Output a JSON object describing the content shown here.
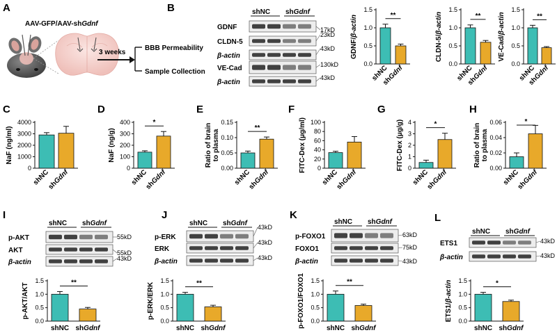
{
  "panel_a": {
    "letter": "A",
    "virus_label": "AAV-GFP/AAV-sh",
    "virus_gene": "Gdnf",
    "arrow_label": "3 weeks",
    "outcome_1": "BBB Permeability",
    "outcome_2": "Sample Collection"
  },
  "blot_b": {
    "letter": "B",
    "group_1": "shNC",
    "group_2_prefix": "sh",
    "group_2_gene": "Gdnf",
    "row_labels": [
      "GDNF",
      "CLDN-5",
      "β-actin",
      "VE-Cad",
      "β-actin"
    ],
    "sizes": [
      "17kD",
      "23kD",
      "43kD",
      "130kD",
      "43kD"
    ]
  },
  "blot_i": {
    "letter": "I",
    "group_1": "shNC",
    "group_2_prefix": "sh",
    "group_2_gene": "Gdnf",
    "row_labels": [
      "p-AKT",
      "AKT",
      "β-actin"
    ],
    "sizes": [
      "55kD",
      "55kD",
      "43kD"
    ]
  },
  "blot_j": {
    "letter": "J",
    "group_1": "shNC",
    "group_2_prefix": "sh",
    "group_2_gene": "Gdnf",
    "row_labels": [
      "p-ERK",
      "ERK",
      "β-actin"
    ],
    "sizes": [
      "43kD",
      "43kD",
      "43kD"
    ]
  },
  "blot_k": {
    "letter": "K",
    "group_1": "shNC",
    "group_2_prefix": "sh",
    "group_2_gene": "Gdnf",
    "row_labels": [
      "p-FOXO1",
      "FOXO1",
      "β-actin"
    ],
    "sizes": [
      "63kD",
      "75kD",
      "43kD"
    ]
  },
  "blot_l": {
    "letter": "L",
    "group_1": "shNC",
    "group_2_prefix": "sh",
    "group_2_gene": "Gdnf",
    "row_labels": [
      "ETS1",
      "β-actin"
    ],
    "sizes": [
      "43kD",
      "43kD"
    ]
  },
  "colors": {
    "shNC": "#3dbdb4",
    "shGdnf": "#e8a92a"
  },
  "chart_data": [
    {
      "panel": "B1",
      "type": "bar",
      "ylabel": "GDNF/β-actin",
      "ylim": [
        0,
        1.5
      ],
      "yticks": [
        "0.0",
        "0.5",
        "1.0",
        "1.5"
      ],
      "categories": [
        "shNC",
        "shGdnf"
      ],
      "values": [
        1.0,
        0.5
      ],
      "errors": [
        0.1,
        0.05
      ],
      "significance": "**"
    },
    {
      "panel": "B2",
      "type": "bar",
      "ylabel": "CLDN-5/β-actin",
      "ylim": [
        0,
        1.5
      ],
      "yticks": [
        "0.0",
        "0.5",
        "1.0",
        "1.5"
      ],
      "categories": [
        "shNC",
        "shGdnf"
      ],
      "values": [
        1.0,
        0.6
      ],
      "errors": [
        0.08,
        0.05
      ],
      "significance": "**"
    },
    {
      "panel": "B3",
      "type": "bar",
      "ylabel": "VE-Cad/β-actin",
      "ylim": [
        0,
        1.5
      ],
      "yticks": [
        "0.0",
        "0.5",
        "1.0",
        "1.5"
      ],
      "categories": [
        "shNC",
        "shGdnf"
      ],
      "values": [
        1.0,
        0.45
      ],
      "errors": [
        0.07,
        0.03
      ],
      "significance": "**"
    },
    {
      "panel": "C",
      "type": "bar",
      "ylabel": "NaF (ng/ml)",
      "ylim": [
        0,
        4000
      ],
      "yticks": [
        "0",
        "1000",
        "2000",
        "3000",
        "4000"
      ],
      "categories": [
        "shNC",
        "shGdnf"
      ],
      "values": [
        2900,
        3050
      ],
      "errors": [
        200,
        600
      ],
      "significance": ""
    },
    {
      "panel": "D",
      "type": "bar",
      "ylabel": "NaF (ng/g)",
      "ylim": [
        0,
        400
      ],
      "yticks": [
        "0",
        "100",
        "200",
        "300",
        "400"
      ],
      "categories": [
        "shNC",
        "shGdnf"
      ],
      "values": [
        140,
        280
      ],
      "errors": [
        12,
        40
      ],
      "significance": "*"
    },
    {
      "panel": "E",
      "type": "bar",
      "ylabel": "Ratio of brain to plasma",
      "ylim": [
        0,
        0.15
      ],
      "yticks": [
        "0.00",
        "0.05",
        "0.10",
        "0.15"
      ],
      "categories": [
        "shNC",
        "shGdnf"
      ],
      "values": [
        0.05,
        0.095
      ],
      "errors": [
        0.006,
        0.007
      ],
      "significance": "**"
    },
    {
      "panel": "F",
      "type": "bar",
      "ylabel": "FITC-Dex (μg/ml)",
      "ylim": [
        0,
        100
      ],
      "yticks": [
        "0",
        "20",
        "40",
        "60",
        "80",
        "100"
      ],
      "categories": [
        "shNC",
        "shGdnf"
      ],
      "values": [
        34,
        57
      ],
      "errors": [
        3,
        12
      ],
      "significance": ""
    },
    {
      "panel": "G",
      "type": "bar",
      "ylabel": "FITC-Dex (μg/g)",
      "ylim": [
        0,
        4
      ],
      "yticks": [
        "0",
        "1",
        "2",
        "3",
        "4"
      ],
      "categories": [
        "shNC",
        "shGdnf"
      ],
      "values": [
        0.5,
        2.5
      ],
      "errors": [
        0.2,
        0.55
      ],
      "significance": "*"
    },
    {
      "panel": "H",
      "type": "bar",
      "ylabel": "Ratio of brain to plasma",
      "ylim": [
        0,
        0.06
      ],
      "yticks": [
        "0.00",
        "0.02",
        "0.04",
        "0.06"
      ],
      "categories": [
        "shNC",
        "shGdnf"
      ],
      "values": [
        0.015,
        0.045
      ],
      "errors": [
        0.005,
        0.011
      ],
      "significance": "*"
    },
    {
      "panel": "I",
      "type": "bar",
      "ylabel": "p-AKT/AKT",
      "ylim": [
        0,
        1.5
      ],
      "yticks": [
        "0.0",
        "0.5",
        "1.0",
        "1.5"
      ],
      "categories": [
        "shNC",
        "shGdnf"
      ],
      "values": [
        1.0,
        0.45
      ],
      "errors": [
        0.1,
        0.06
      ],
      "significance": "**"
    },
    {
      "panel": "J",
      "type": "bar",
      "ylabel": "p-ERK/ERK",
      "ylim": [
        0,
        1.5
      ],
      "yticks": [
        "0.0",
        "0.5",
        "1.0",
        "1.5"
      ],
      "categories": [
        "shNC",
        "shGdnf"
      ],
      "values": [
        1.0,
        0.53
      ],
      "errors": [
        0.07,
        0.06
      ],
      "significance": "**"
    },
    {
      "panel": "K",
      "type": "bar",
      "ylabel": "p-FOXO1/FOXO1",
      "ylim": [
        0,
        1.5
      ],
      "yticks": [
        "0.0",
        "0.5",
        "1.0",
        "1.5"
      ],
      "categories": [
        "shNC",
        "shGdnf"
      ],
      "values": [
        1.0,
        0.58
      ],
      "errors": [
        0.12,
        0.05
      ],
      "significance": "**"
    },
    {
      "panel": "L",
      "type": "bar",
      "ylabel": "ETS1/β-actin",
      "ylim": [
        0,
        1.5
      ],
      "yticks": [
        "0.0",
        "0.5",
        "1.0",
        "1.5"
      ],
      "categories": [
        "shNC",
        "shGdnf"
      ],
      "values": [
        1.0,
        0.73
      ],
      "errors": [
        0.07,
        0.05
      ],
      "significance": "*"
    }
  ]
}
